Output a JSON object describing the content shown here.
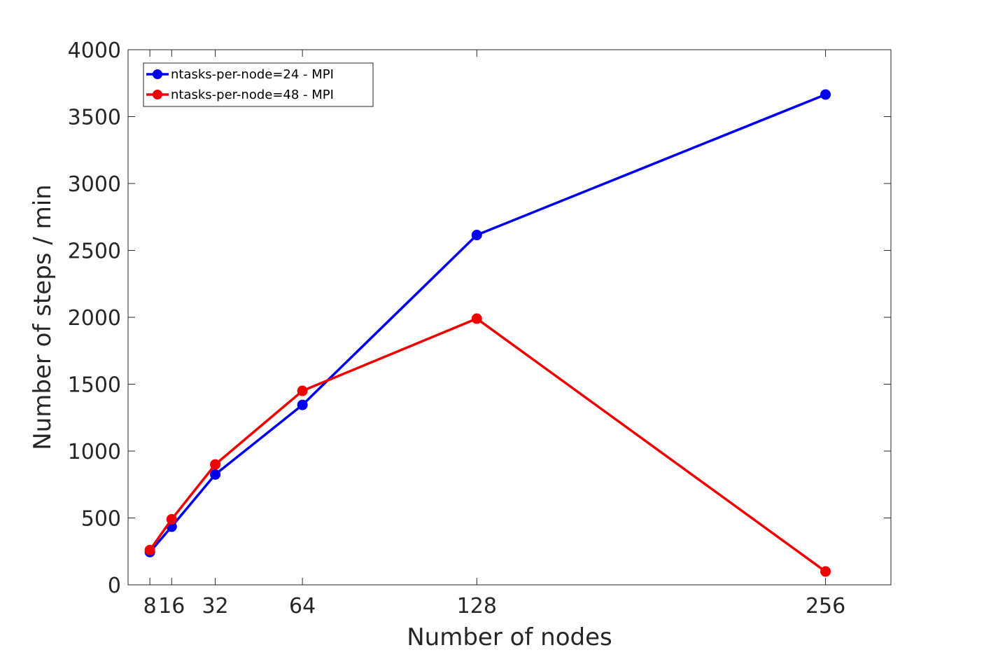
{
  "chart_data": {
    "type": "line",
    "xlabel": "Number of nodes",
    "ylabel": "Number of steps / min",
    "xlim": [
      0,
      280
    ],
    "ylim": [
      0,
      4000
    ],
    "x_ticks": [
      8,
      16,
      32,
      64,
      128,
      256
    ],
    "x_tick_labels": [
      "8",
      "16",
      "32",
      "64",
      "128",
      "256"
    ],
    "y_ticks": [
      0,
      500,
      1000,
      1500,
      2000,
      2500,
      3000,
      3500,
      4000
    ],
    "y_tick_labels": [
      "0",
      "500",
      "1000",
      "1500",
      "2000",
      "2500",
      "3000",
      "3500",
      "4000"
    ],
    "x": [
      8,
      16,
      32,
      64,
      128,
      256
    ],
    "series": [
      {
        "name": "ntasks-per-node=24 - MPI",
        "color": "#0000ee",
        "values": [
          245,
          435,
          825,
          1345,
          2615,
          3665
        ]
      },
      {
        "name": "ntasks-per-node=48 - MPI",
        "color": "#ee0000",
        "values": [
          260,
          490,
          900,
          1450,
          1990,
          100
        ]
      }
    ],
    "legend_position": "top-left",
    "grid": false,
    "box": true
  }
}
